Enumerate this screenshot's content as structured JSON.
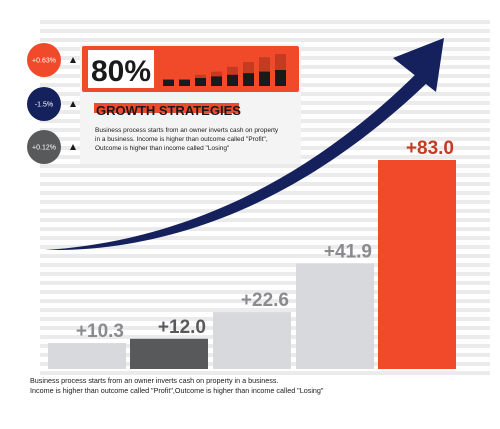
{
  "colors": {
    "orange": "#f04a2a",
    "dark_orange": "#c43b21",
    "navy": "#15215c",
    "dark_gray": "#58595b",
    "light_gray": "#d8d9dc",
    "stripe": "#ebebeb",
    "black": "#1a1a1a"
  },
  "badges": [
    {
      "label": "+0.63%",
      "color": "#f04a2a"
    },
    {
      "label": "-1.5%",
      "color": "#15215c"
    },
    {
      "label": "+0.12%",
      "color": "#58595b"
    }
  ],
  "panel": {
    "big_value": "80%",
    "heading": "GROWTH STRATEGIES",
    "body_lines": [
      "Business process starts from an owner inverts cash on property",
      "in a business. Income is higher than outcome called \"Profit\",",
      "Outcome is higher than income called \"Losing\""
    ]
  },
  "mini_bars": [
    {
      "base": 0.2,
      "top": 0.2
    },
    {
      "base": 0.2,
      "top": 0.2
    },
    {
      "base": 0.25,
      "top": 0.35
    },
    {
      "base": 0.3,
      "top": 0.45
    },
    {
      "base": 0.35,
      "top": 0.6
    },
    {
      "base": 0.4,
      "top": 0.75
    },
    {
      "base": 0.45,
      "top": 0.9
    },
    {
      "base": 0.5,
      "top": 1.0
    }
  ],
  "chart_data": {
    "type": "bar",
    "categories": [
      "",
      "",
      "",
      "",
      ""
    ],
    "values": [
      10.3,
      12.0,
      22.6,
      41.9,
      83.0
    ],
    "data_labels": [
      "+10.3",
      "+12.0",
      "+22.6",
      "+41.9",
      "+83.0"
    ],
    "bar_colors": [
      "#d8d9dc",
      "#58595b",
      "#d8d9dc",
      "#d8d9dc",
      "#f04a2a"
    ],
    "label_colors": [
      "#8a8b8e",
      "#58595b",
      "#8a8b8e",
      "#8a8b8e",
      "#c43b21"
    ],
    "ylim": [
      0,
      83.0
    ],
    "grid": true,
    "legend": "none"
  },
  "footer": {
    "lines": [
      "Business process starts from an owner inverts cash on property in a business.",
      "Income is higher than outcome called \"Profit\",Outcome is higher than income called \"Losing\""
    ]
  }
}
